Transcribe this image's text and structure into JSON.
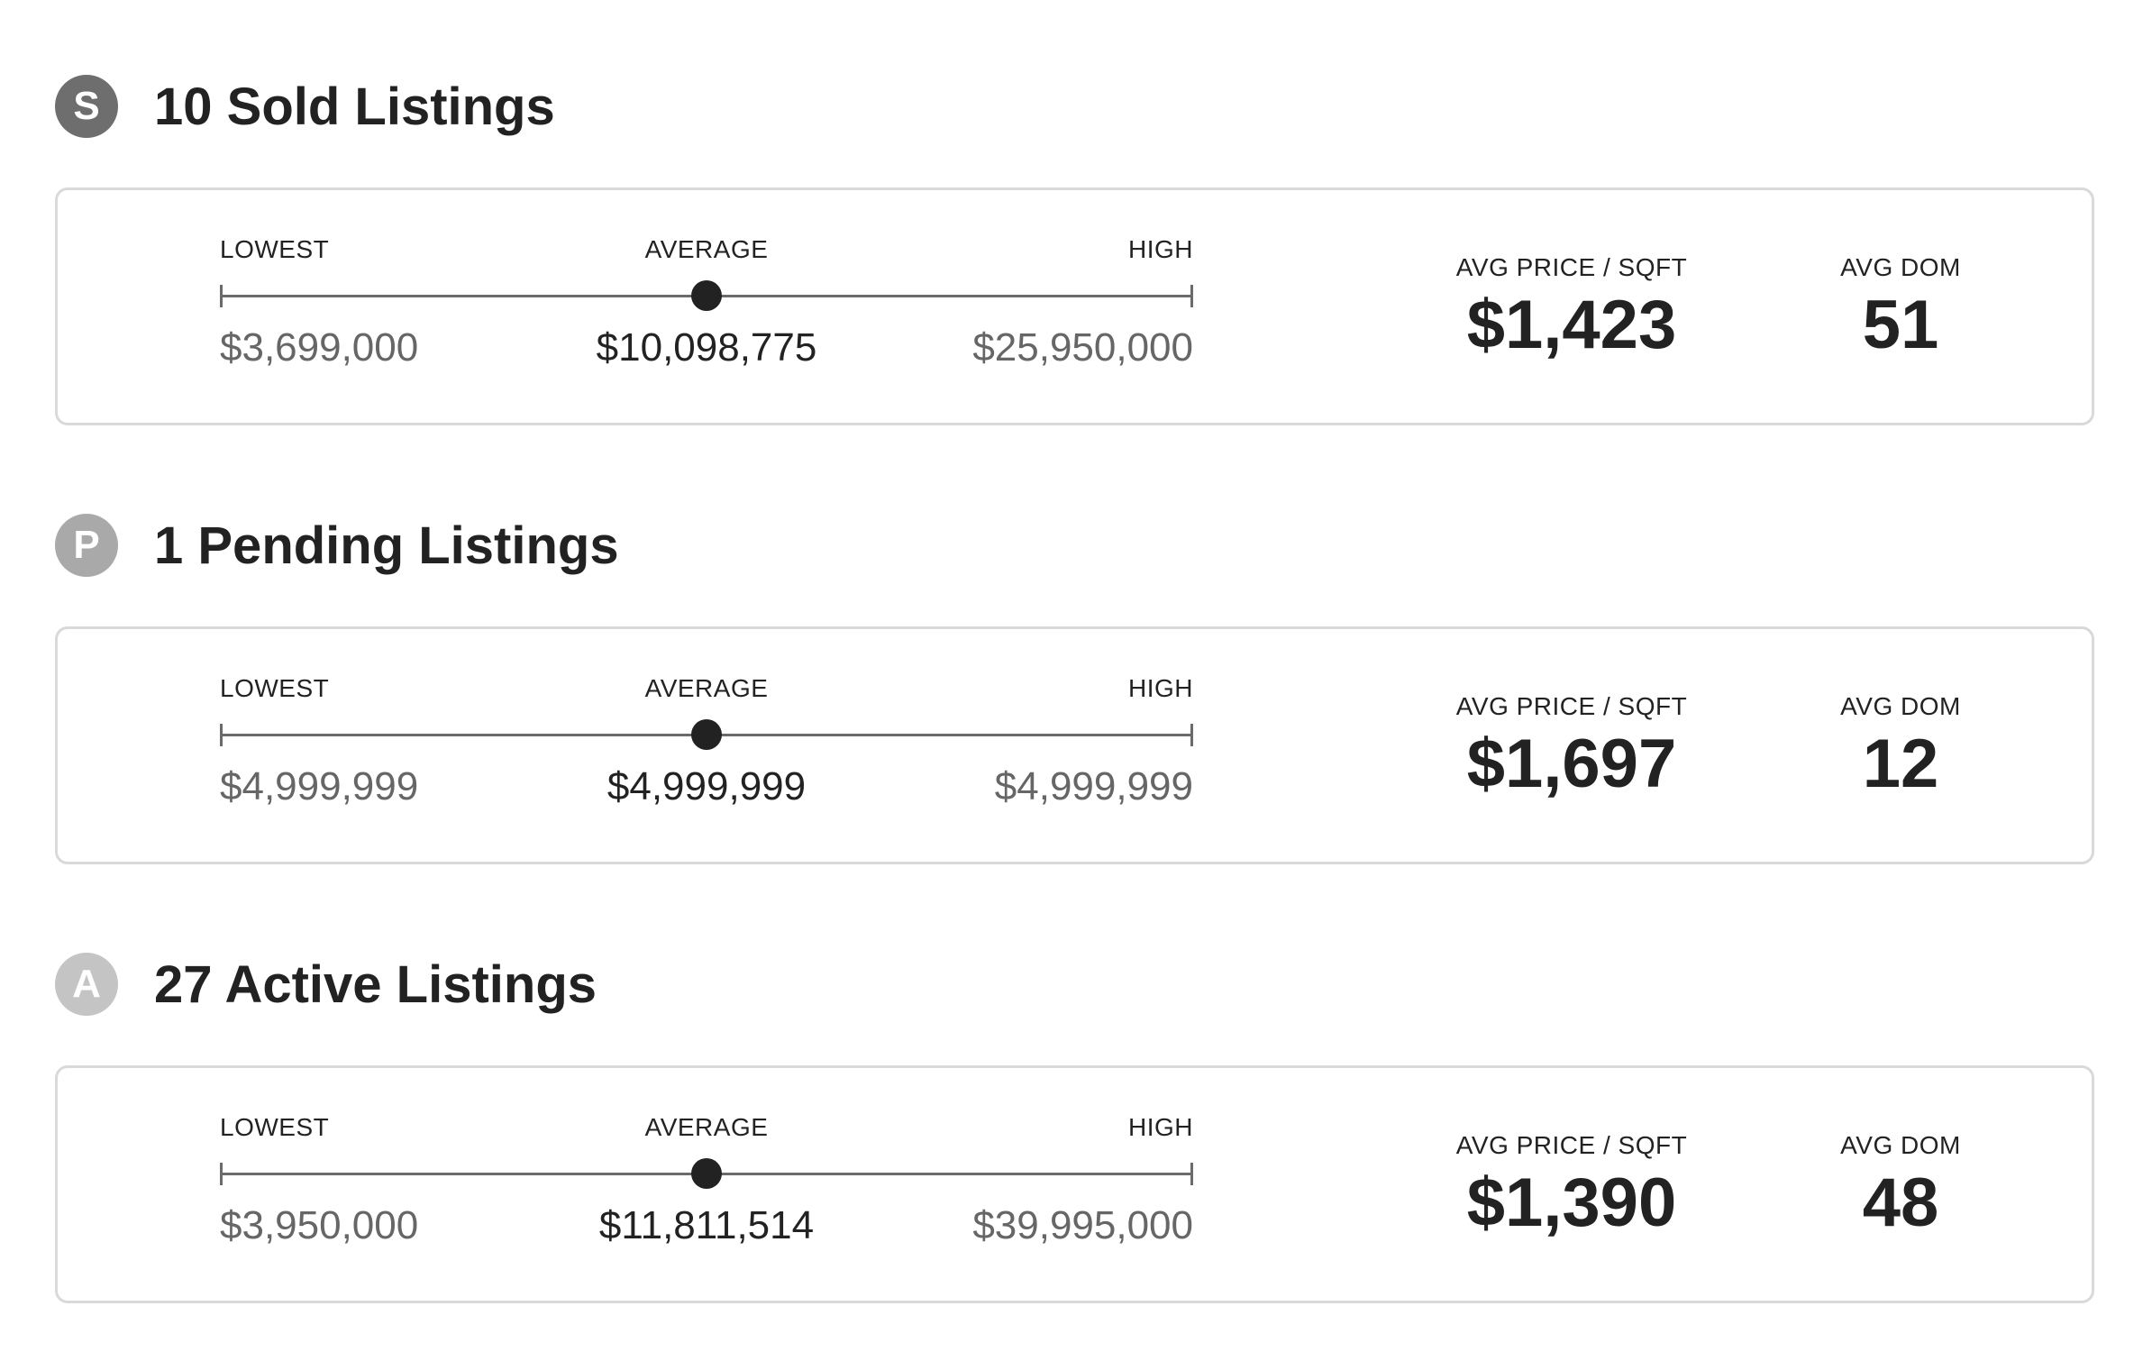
{
  "sections": [
    {
      "badge_letter": "S",
      "badge_color": "#6e6e6e",
      "title": "10 Sold Listings",
      "range": {
        "lowest_label": "LOWEST",
        "average_label": "AVERAGE",
        "high_label": "HIGH",
        "lowest_value": "$3,699,000",
        "average_value": "$10,098,775",
        "high_value": "$25,950,000"
      },
      "avg_price_sqft_label": "AVG PRICE / SQFT",
      "avg_price_sqft_value": "$1,423",
      "avg_dom_label": "AVG DOM",
      "avg_dom_value": "51"
    },
    {
      "badge_letter": "P",
      "badge_color": "#a9a9a9",
      "title": "1 Pending Listings",
      "range": {
        "lowest_label": "LOWEST",
        "average_label": "AVERAGE",
        "high_label": "HIGH",
        "lowest_value": "$4,999,999",
        "average_value": "$4,999,999",
        "high_value": "$4,999,999"
      },
      "avg_price_sqft_label": "AVG PRICE / SQFT",
      "avg_price_sqft_value": "$1,697",
      "avg_dom_label": "AVG DOM",
      "avg_dom_value": "12"
    },
    {
      "badge_letter": "A",
      "badge_color": "#c4c4c4",
      "title": "27 Active Listings",
      "range": {
        "lowest_label": "LOWEST",
        "average_label": "AVERAGE",
        "high_label": "HIGH",
        "lowest_value": "$3,950,000",
        "average_value": "$11,811,514",
        "high_value": "$39,995,000"
      },
      "avg_price_sqft_label": "AVG PRICE / SQFT",
      "avg_price_sqft_value": "$1,390",
      "avg_dom_label": "AVG DOM",
      "avg_dom_value": "48"
    }
  ]
}
